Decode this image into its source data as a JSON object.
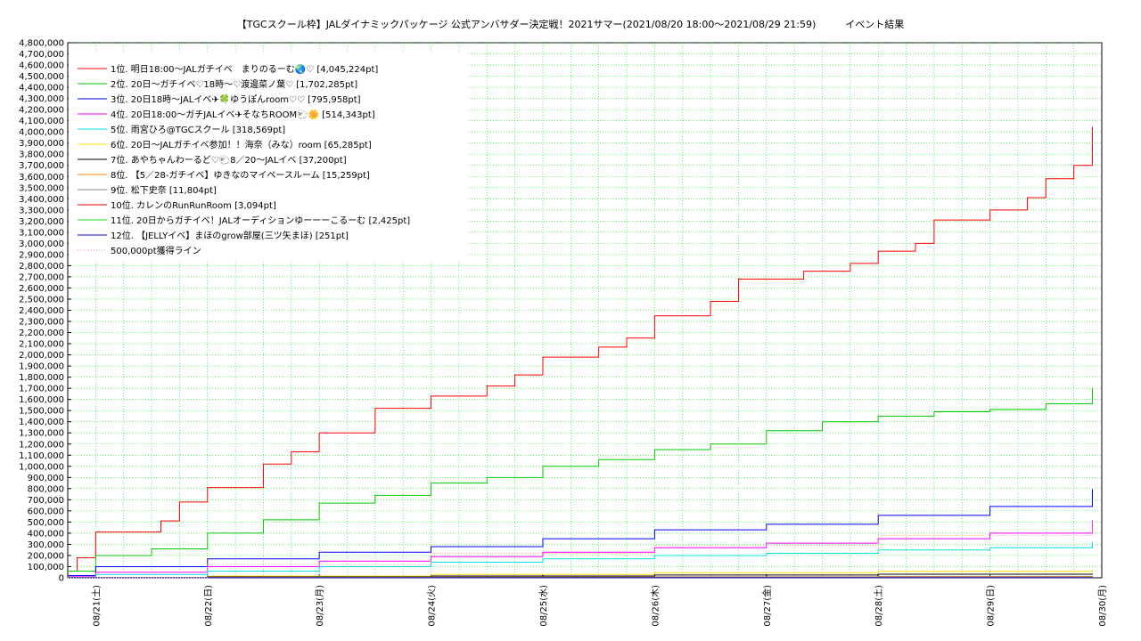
{
  "title": "【TGCスクール枠】JALダイナミックパッケージ 公式アンバサダー決定戦！2021サマー(2021/08/20 18:00～2021/08/29 21:59)　　　イベント結果",
  "chart_data": {
    "type": "line",
    "title": "【TGCスクール枠】JALダイナミックパッケージ 公式アンバサダー決定戦！2021サマー(2021/08/20 18:00～2021/08/29 21:59)　　　イベント結果",
    "xlabel": "",
    "ylabel": "",
    "x_ticks": [
      "08/21(土)",
      "08/22(日)",
      "08/23(月)",
      "08/24(火)",
      "08/25(水)",
      "08/26(木)",
      "08/27(金)",
      "08/28(土)",
      "08/29(日)",
      "08/30(月)"
    ],
    "x_range": [
      "2021-08-20 18:00",
      "2021-08-30 00:00"
    ],
    "ylim": [
      0,
      4800000
    ],
    "y_ticks": [
      "0",
      "100,000",
      "200,000",
      "300,000",
      "400,000",
      "500,000",
      "600,000",
      "700,000",
      "800,000",
      "900,000",
      "1,000,000",
      "1,100,000",
      "1,200,000",
      "1,300,000",
      "1,400,000",
      "1,500,000",
      "1,600,000",
      "1,700,000",
      "1,800,000",
      "1,900,000",
      "2,000,000",
      "2,100,000",
      "2,200,000",
      "2,300,000",
      "2,400,000",
      "2,500,000",
      "2,600,000",
      "2,700,000",
      "2,800,000",
      "2,900,000",
      "3,000,000",
      "3,100,000",
      "3,200,000",
      "3,300,000",
      "3,400,000",
      "3,500,000",
      "3,600,000",
      "3,700,000",
      "3,800,000",
      "3,900,000",
      "4,000,000",
      "4,100,000",
      "4,200,000",
      "4,300,000",
      "4,400,000",
      "4,500,000",
      "4,600,000",
      "4,700,000",
      "4,800,000"
    ],
    "grid": true,
    "legend_position": "top-left",
    "series": [
      {
        "name": "1位. 明日18:00～JALガチイベ　まりのるーむ🌏♡ [4,045,224pt]",
        "color": "#ff0000",
        "x": [
          "2021-08-20 18:00",
          "2021-08-20 20:00",
          "2021-08-21 00:00",
          "2021-08-21 08:00",
          "2021-08-21 14:00",
          "2021-08-21 18:00",
          "2021-08-22 00:00",
          "2021-08-22 08:00",
          "2021-08-22 12:00",
          "2021-08-22 18:00",
          "2021-08-23 00:00",
          "2021-08-23 08:00",
          "2021-08-23 12:00",
          "2021-08-23 18:00",
          "2021-08-24 00:00",
          "2021-08-24 08:00",
          "2021-08-24 12:00",
          "2021-08-24 18:00",
          "2021-08-25 00:00",
          "2021-08-25 08:00",
          "2021-08-25 12:00",
          "2021-08-25 18:00",
          "2021-08-26 00:00",
          "2021-08-26 08:00",
          "2021-08-26 12:00",
          "2021-08-26 18:00",
          "2021-08-27 00:00",
          "2021-08-27 08:00",
          "2021-08-27 12:00",
          "2021-08-27 18:00",
          "2021-08-28 00:00",
          "2021-08-28 08:00",
          "2021-08-28 12:00",
          "2021-08-28 18:00",
          "2021-08-29 00:00",
          "2021-08-29 08:00",
          "2021-08-29 12:00",
          "2021-08-29 18:00",
          "2021-08-29 21:59"
        ],
        "y": [
          60000,
          180000,
          410000,
          410000,
          510000,
          680000,
          810000,
          810000,
          1020000,
          1130000,
          1300000,
          1300000,
          1520000,
          1520000,
          1630000,
          1630000,
          1720000,
          1820000,
          1980000,
          1980000,
          2070000,
          2150000,
          2350000,
          2350000,
          2480000,
          2680000,
          2680000,
          2750000,
          2750000,
          2820000,
          2930000,
          3000000,
          3210000,
          3210000,
          3300000,
          3410000,
          3580000,
          3700000,
          4045224
        ]
      },
      {
        "name": "2位. 20日～ガチイベ♡18時～♡渡邊菜ノ葉♡ [1,702,285pt]",
        "color": "#00cc00",
        "x": [
          "2021-08-20 18:00",
          "2021-08-21 00:00",
          "2021-08-21 12:00",
          "2021-08-22 00:00",
          "2021-08-22 12:00",
          "2021-08-23 00:00",
          "2021-08-23 12:00",
          "2021-08-24 00:00",
          "2021-08-24 12:00",
          "2021-08-25 00:00",
          "2021-08-25 12:00",
          "2021-08-26 00:00",
          "2021-08-26 12:00",
          "2021-08-27 00:00",
          "2021-08-27 12:00",
          "2021-08-28 00:00",
          "2021-08-28 12:00",
          "2021-08-29 00:00",
          "2021-08-29 12:00",
          "2021-08-29 21:59"
        ],
        "y": [
          60000,
          200000,
          260000,
          400000,
          520000,
          670000,
          740000,
          850000,
          900000,
          1000000,
          1060000,
          1150000,
          1200000,
          1320000,
          1400000,
          1450000,
          1490000,
          1510000,
          1560000,
          1702285
        ]
      },
      {
        "name": "3位. 20日18時～JALイベ✈🍀ゆうぽんroom♡♡ [795,958pt]",
        "color": "#0000ff",
        "x": [
          "2021-08-20 18:00",
          "2021-08-21 00:00",
          "2021-08-22 00:00",
          "2021-08-23 00:00",
          "2021-08-24 00:00",
          "2021-08-25 00:00",
          "2021-08-26 00:00",
          "2021-08-27 00:00",
          "2021-08-28 00:00",
          "2021-08-29 00:00",
          "2021-08-29 21:59"
        ],
        "y": [
          20000,
          100000,
          170000,
          230000,
          280000,
          350000,
          430000,
          480000,
          560000,
          640000,
          795958
        ]
      },
      {
        "name": "4位. 20日18:00～ガチJALイベ✈そなちROOM🐑🌼 [514,343pt]",
        "color": "#ff00ff",
        "x": [
          "2021-08-20 18:00",
          "2021-08-21 00:00",
          "2021-08-22 00:00",
          "2021-08-23 00:00",
          "2021-08-24 00:00",
          "2021-08-25 00:00",
          "2021-08-26 00:00",
          "2021-08-27 00:00",
          "2021-08-28 00:00",
          "2021-08-29 00:00",
          "2021-08-29 21:59"
        ],
        "y": [
          10000,
          50000,
          100000,
          150000,
          190000,
          230000,
          270000,
          310000,
          350000,
          400000,
          514343
        ]
      },
      {
        "name": "5位. 雨宮ひろ@TGCスクール [318,569pt]",
        "color": "#00e0e0",
        "x": [
          "2021-08-20 18:00",
          "2021-08-21 00:00",
          "2021-08-22 00:00",
          "2021-08-23 00:00",
          "2021-08-24 00:00",
          "2021-08-25 00:00",
          "2021-08-26 00:00",
          "2021-08-27 00:00",
          "2021-08-28 00:00",
          "2021-08-29 00:00",
          "2021-08-29 21:59"
        ],
        "y": [
          5000,
          30000,
          60000,
          100000,
          140000,
          170000,
          200000,
          220000,
          250000,
          270000,
          318569
        ]
      },
      {
        "name": "6位. 20日～JALガチイベ参加！！海奈（みな）room [65,285pt]",
        "color": "#ffdd00",
        "x": [
          "2021-08-20 18:00",
          "2021-08-22 00:00",
          "2021-08-24 00:00",
          "2021-08-26 00:00",
          "2021-08-28 00:00",
          "2021-08-29 21:59"
        ],
        "y": [
          2000,
          15000,
          30000,
          45000,
          58000,
          65285
        ]
      },
      {
        "name": "7位. あやちゃんわーるど♡🐑8／20～JALイベ [37,200pt]",
        "color": "#000000",
        "x": [
          "2021-08-20 18:00",
          "2021-08-22 00:00",
          "2021-08-24 00:00",
          "2021-08-26 00:00",
          "2021-08-28 00:00",
          "2021-08-29 21:59"
        ],
        "y": [
          1000,
          8000,
          16000,
          25000,
          32000,
          37200
        ]
      },
      {
        "name": "8位. 【5／28-ガチイベ】ゆきなのマイペースルーム [15,259pt]",
        "color": "#ff8000",
        "x": [
          "2021-08-20 18:00",
          "2021-08-22 00:00",
          "2021-08-24 00:00",
          "2021-08-26 00:00",
          "2021-08-28 00:00",
          "2021-08-29 21:59"
        ],
        "y": [
          0,
          3000,
          6000,
          9000,
          12000,
          15259
        ]
      },
      {
        "name": "9位. 松下史奈 [11,804pt]",
        "color": "#808080",
        "x": [
          "2021-08-20 18:00",
          "2021-08-22 00:00",
          "2021-08-24 00:00",
          "2021-08-26 00:00",
          "2021-08-28 00:00",
          "2021-08-29 21:59"
        ],
        "y": [
          0,
          2000,
          5000,
          7000,
          9000,
          11804
        ]
      },
      {
        "name": "10位. カレンのRunRunRoom [3,094pt]",
        "color": "#dd0000",
        "x": [
          "2021-08-20 18:00",
          "2021-08-24 00:00",
          "2021-08-29 21:59"
        ],
        "y": [
          0,
          1500,
          3094
        ]
      },
      {
        "name": "11位. 20日からガチイベ！JALオーディションゆーーーこるーむ [2,425pt]",
        "color": "#22dd22",
        "x": [
          "2021-08-20 18:00",
          "2021-08-24 00:00",
          "2021-08-29 21:59"
        ],
        "y": [
          0,
          1200,
          2425
        ]
      },
      {
        "name": "12位. 【JELLYイベ】まほのgrow部屋(三ツ矢まほ) [251pt]",
        "color": "#0000cc",
        "x": [
          "2021-08-20 18:00",
          "2021-08-24 00:00",
          "2021-08-29 21:59"
        ],
        "y": [
          0,
          120,
          251
        ]
      },
      {
        "name": "500,000pt獲得ライン",
        "color": "#ff9999",
        "dotted": true,
        "x": [
          "2021-08-20 18:00",
          "2021-08-22 00:00",
          "2021-08-24 00:00",
          "2021-08-26 00:00",
          "2021-08-28 00:00",
          "2021-08-29 21:59"
        ],
        "y": [
          0,
          120000,
          220000,
          290000,
          380000,
          500000
        ]
      }
    ]
  }
}
